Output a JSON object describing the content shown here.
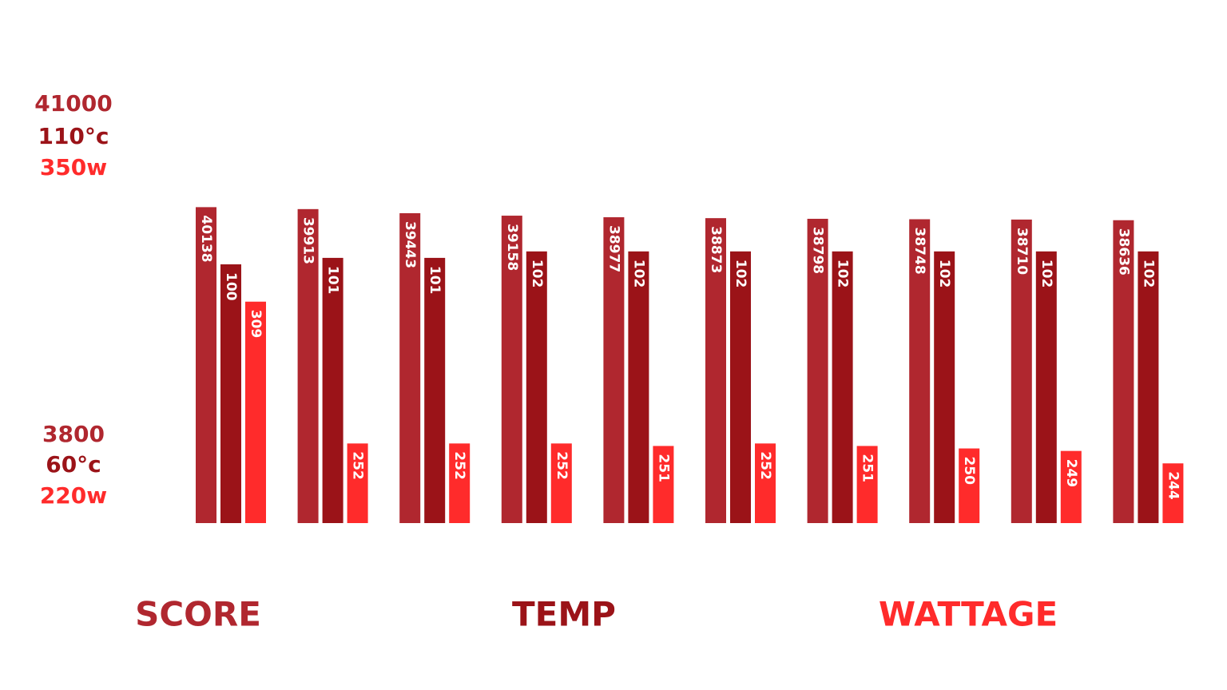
{
  "chart_data": {
    "type": "bar",
    "categories": [
      null,
      null,
      null,
      null,
      null,
      null,
      null,
      null,
      null,
      null
    ],
    "series": [
      {
        "name": "SCORE",
        "color": "#b0272f",
        "values": [
          40138,
          39913,
          39443,
          39158,
          38977,
          38873,
          38798,
          38748,
          38710,
          38636
        ],
        "ylim": [
          3800,
          41000
        ],
        "yticks": [
          {
            "value": 3800,
            "label": "3800"
          },
          {
            "value": 41000,
            "label": "41000"
          }
        ]
      },
      {
        "name": "TEMP",
        "color": "#9b1318",
        "values": [
          100,
          101,
          101,
          102,
          102,
          102,
          102,
          102,
          102,
          102
        ],
        "ylim": [
          60,
          110
        ],
        "yticks": [
          {
            "value": 60,
            "label": "60°c"
          },
          {
            "value": 110,
            "label": "110°c"
          }
        ]
      },
      {
        "name": "WATTAGE",
        "color": "#ff2b2b",
        "values": [
          309,
          252,
          252,
          252,
          251,
          252,
          251,
          250,
          249,
          244
        ],
        "ylim": [
          220,
          350
        ],
        "yticks": [
          {
            "value": 220,
            "label": "220w"
          },
          {
            "value": 350,
            "label": "350w"
          }
        ]
      }
    ]
  }
}
